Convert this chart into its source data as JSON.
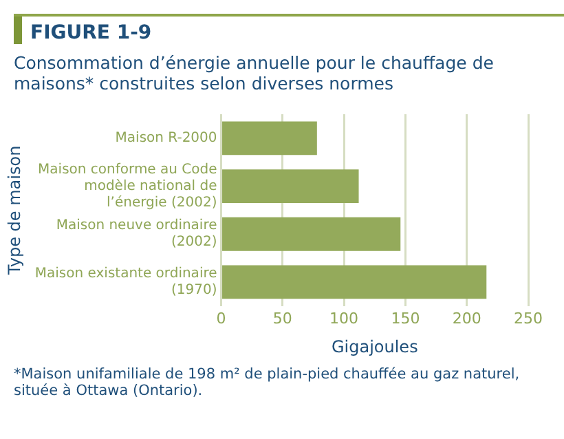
{
  "chart_data": {
    "type": "bar",
    "orientation": "horizontal",
    "subtitle": "FIGURE 1-9",
    "title": "Consommation d’énergie annuelle pour le chauffage de maisons* construites selon diverses normes",
    "categories": [
      "Maison R-2000",
      "Maison conforme au Code modèle national de l’énergie (2002)",
      "Maison neuve ordinaire (2002)",
      "Maison existante ordinaire (1970)"
    ],
    "values": [
      78,
      112,
      146,
      216
    ],
    "color": "#94aa5b",
    "xlim": [
      0,
      250
    ],
    "xticks": [
      0,
      50,
      100,
      150,
      200,
      250
    ],
    "grid": "x",
    "legend": false,
    "xlabel": "Gigajoules",
    "ylabel": "Type de maison",
    "annotations": [
      "*Maison unifamiliale de 198 m² de plain-pied chauffée au gaz naturel, située à Ottawa (Ontario)."
    ]
  }
}
